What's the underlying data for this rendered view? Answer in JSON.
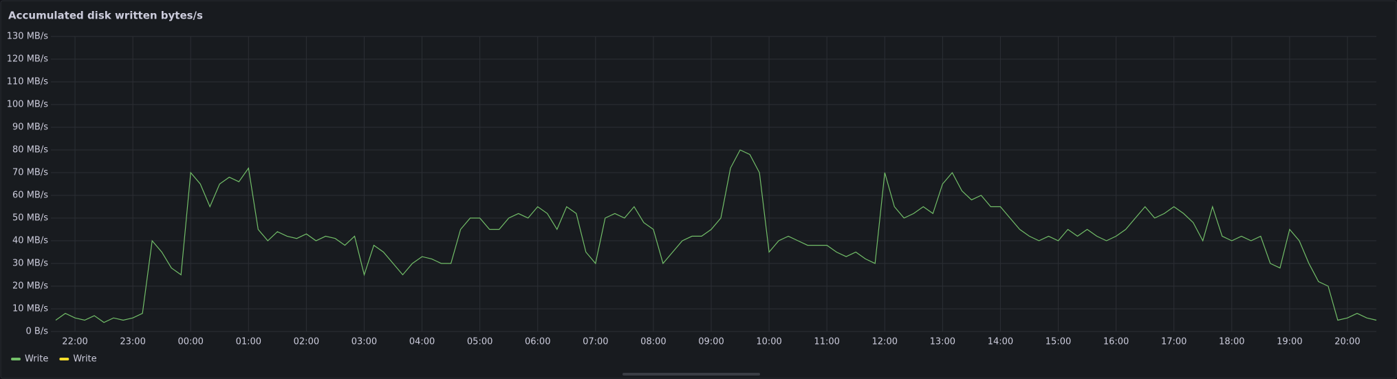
{
  "chart_data": {
    "type": "line",
    "title": "Accumulated disk written bytes/s",
    "x": [
      "21:40",
      "21:50",
      "22:00",
      "22:10",
      "22:20",
      "22:30",
      "22:40",
      "22:50",
      "23:00",
      "23:10",
      "23:20",
      "23:30",
      "23:40",
      "23:50",
      "00:00",
      "00:10",
      "00:20",
      "00:30",
      "00:40",
      "00:50",
      "01:00",
      "01:10",
      "01:20",
      "01:30",
      "01:40",
      "01:50",
      "02:00",
      "02:10",
      "02:20",
      "02:30",
      "02:40",
      "02:50",
      "03:00",
      "03:10",
      "03:20",
      "03:30",
      "03:40",
      "03:50",
      "04:00",
      "04:10",
      "04:20",
      "04:30",
      "04:40",
      "04:50",
      "05:00",
      "05:10",
      "05:20",
      "05:30",
      "05:40",
      "05:50",
      "06:00",
      "06:10",
      "06:20",
      "06:30",
      "06:40",
      "06:50",
      "07:00",
      "07:10",
      "07:20",
      "07:30",
      "07:40",
      "07:50",
      "08:00",
      "08:10",
      "08:20",
      "08:30",
      "08:40",
      "08:50",
      "09:00",
      "09:10",
      "09:20",
      "09:30",
      "09:40",
      "09:50",
      "10:00",
      "10:10",
      "10:20",
      "10:30",
      "10:40",
      "10:50",
      "11:00",
      "11:10",
      "11:20",
      "11:30",
      "11:40",
      "11:50",
      "12:00",
      "12:10",
      "12:20",
      "12:30",
      "12:40",
      "12:50",
      "13:00",
      "13:10",
      "13:20",
      "13:30",
      "13:40",
      "13:50",
      "14:00",
      "14:10",
      "14:20",
      "14:30",
      "14:40",
      "14:50",
      "15:00",
      "15:10",
      "15:20",
      "15:30",
      "15:40",
      "15:50",
      "16:00",
      "16:10",
      "16:20",
      "16:30",
      "16:40",
      "16:50",
      "17:00",
      "17:10",
      "17:20",
      "17:30",
      "17:40",
      "17:50",
      "18:00",
      "18:10",
      "18:20",
      "18:30",
      "18:40",
      "18:50",
      "19:00",
      "19:10",
      "19:20",
      "19:30",
      "19:40",
      "19:50",
      "20:00",
      "20:10",
      "20:20",
      "20:30"
    ],
    "series": [
      {
        "name": "Write",
        "color": "#73bf69",
        "values": [
          5,
          8,
          6,
          5,
          7,
          4,
          6,
          5,
          6,
          8,
          40,
          35,
          28,
          25,
          70,
          65,
          55,
          65,
          68,
          66,
          72,
          45,
          40,
          44,
          42,
          41,
          43,
          40,
          42,
          41,
          38,
          42,
          25,
          38,
          35,
          30,
          25,
          30,
          33,
          32,
          30,
          30,
          45,
          50,
          50,
          45,
          45,
          50,
          52,
          50,
          55,
          52,
          45,
          55,
          52,
          35,
          30,
          50,
          52,
          50,
          55,
          48,
          45,
          30,
          35,
          40,
          42,
          42,
          45,
          50,
          72,
          80,
          78,
          70,
          35,
          40,
          42,
          40,
          38,
          38,
          38,
          35,
          33,
          35,
          32,
          30,
          70,
          55,
          50,
          52,
          55,
          52,
          65,
          70,
          62,
          58,
          60,
          55,
          55,
          50,
          45,
          42,
          40,
          42,
          40,
          45,
          42,
          45,
          42,
          40,
          42,
          45,
          50,
          55,
          50,
          52,
          55,
          52,
          48,
          40,
          55,
          42,
          40,
          42,
          40,
          42,
          30,
          28,
          45,
          40,
          30,
          22,
          20,
          5,
          6,
          8,
          6,
          5
        ]
      }
    ],
    "legend": [
      {
        "name": "Write",
        "color": "#73bf69"
      },
      {
        "name": "Write",
        "color": "#fade2a"
      }
    ],
    "xlim": [
      "21:35",
      "20:30"
    ],
    "xticks": [
      "22:00",
      "23:00",
      "00:00",
      "01:00",
      "02:00",
      "03:00",
      "04:00",
      "05:00",
      "06:00",
      "07:00",
      "08:00",
      "09:00",
      "10:00",
      "11:00",
      "12:00",
      "13:00",
      "14:00",
      "15:00",
      "16:00",
      "17:00",
      "18:00",
      "19:00",
      "20:00"
    ],
    "ylim": [
      0,
      130
    ],
    "yticks": [
      {
        "value": 0,
        "label": "0 B/s"
      },
      {
        "value": 10,
        "label": "10 MB/s"
      },
      {
        "value": 20,
        "label": "20 MB/s"
      },
      {
        "value": 30,
        "label": "30 MB/s"
      },
      {
        "value": 40,
        "label": "40 MB/s"
      },
      {
        "value": 50,
        "label": "50 MB/s"
      },
      {
        "value": 60,
        "label": "60 MB/s"
      },
      {
        "value": 70,
        "label": "70 MB/s"
      },
      {
        "value": 80,
        "label": "80 MB/s"
      },
      {
        "value": 90,
        "label": "90 MB/s"
      },
      {
        "value": 100,
        "label": "100 MB/s"
      },
      {
        "value": 110,
        "label": "110 MB/s"
      },
      {
        "value": 120,
        "label": "120 MB/s"
      },
      {
        "value": 130,
        "label": "130 MB/s"
      }
    ],
    "grid": true
  }
}
